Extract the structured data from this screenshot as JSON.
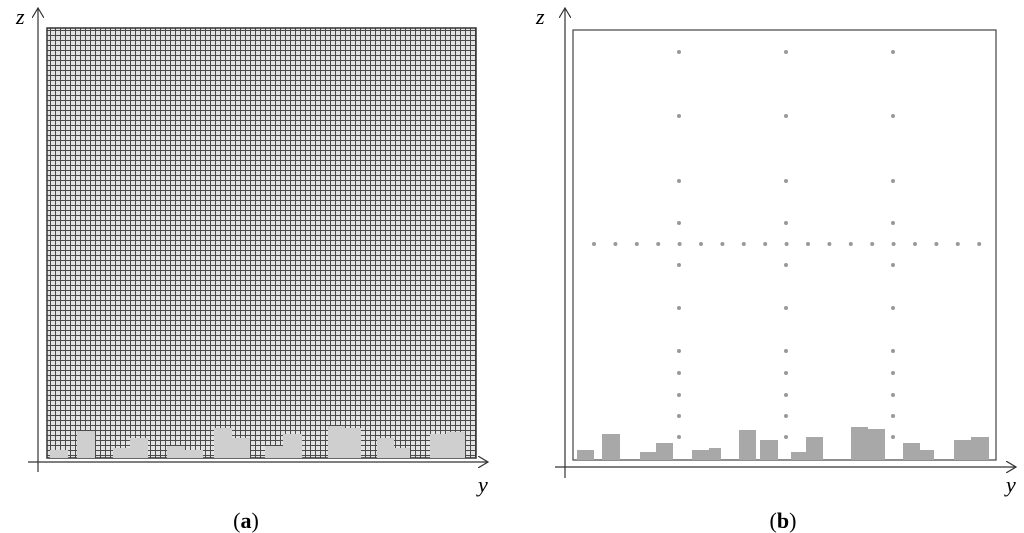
{
  "panels": [
    {
      "z_label": "z",
      "y_label": "y",
      "caption": [
        "(",
        "a",
        ")"
      ]
    },
    {
      "z_label": "z",
      "y_label": "y",
      "caption": [
        "(",
        "b",
        ")"
      ]
    }
  ]
}
